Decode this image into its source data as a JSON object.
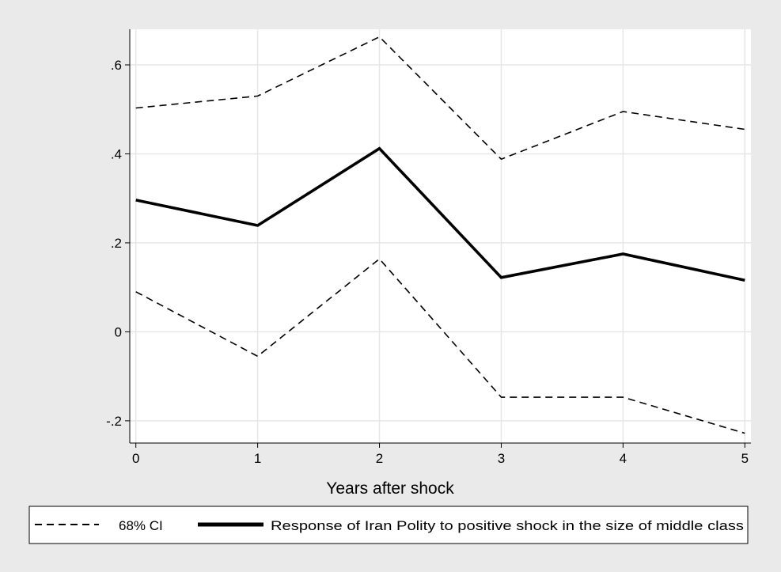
{
  "chart_data": {
    "type": "line",
    "title": "",
    "xlabel": "Years after shock",
    "ylabel": "",
    "x": [
      0,
      1,
      2,
      3,
      4,
      5
    ],
    "xticks": [
      "0",
      "1",
      "2",
      "3",
      "4",
      "5"
    ],
    "yticks": [
      {
        "value": -0.2,
        "label": "-.2"
      },
      {
        "value": 0,
        "label": "0"
      },
      {
        "value": 0.2,
        "label": ".2"
      },
      {
        "value": 0.4,
        "label": ".4"
      },
      {
        "value": 0.6,
        "label": ".6"
      }
    ],
    "xlim": [
      -0.05,
      5.05
    ],
    "ylim": [
      -0.25,
      0.68
    ],
    "grid": true,
    "legend_position": "bottom",
    "series": [
      {
        "id": "upper",
        "name": "68% CI",
        "style": "dashed",
        "color": "#000000",
        "values": [
          0.503,
          0.53,
          0.663,
          0.388,
          0.495,
          0.455
        ]
      },
      {
        "id": "response",
        "name": "Response of Iran Polity to positive shock in the size of middle class",
        "style": "solid",
        "color": "#000000",
        "values": [
          0.296,
          0.239,
          0.412,
          0.122,
          0.175,
          0.116
        ]
      },
      {
        "id": "lower",
        "name": "68% CI",
        "style": "dashed",
        "color": "#000000",
        "values": [
          0.09,
          -0.055,
          0.164,
          -0.147,
          -0.147,
          -0.228
        ]
      }
    ],
    "legend": [
      {
        "label": "68% CI",
        "style": "dashed"
      },
      {
        "label": "Response of Iran Polity to positive shock in the size of middle class",
        "style": "solid"
      }
    ]
  }
}
